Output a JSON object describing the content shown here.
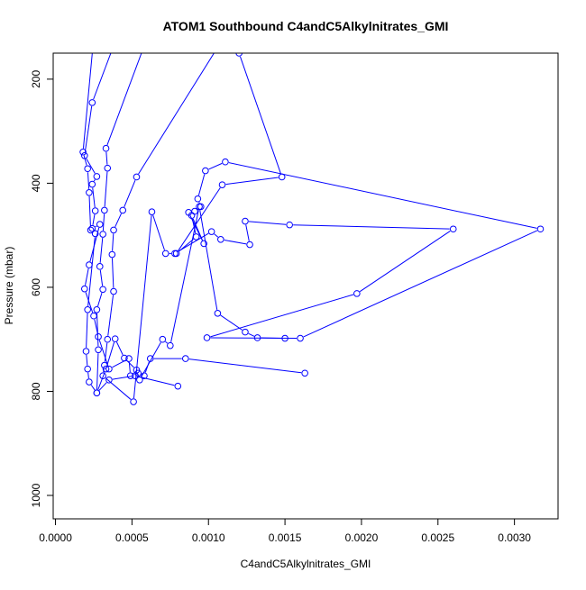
{
  "chart_data": {
    "type": "line",
    "title": "ATOM1 Southbound C4andC5Alkylnitrates_GMI",
    "xlabel": "C4andC5Alkylnitrates_GMI",
    "ylabel": "Pressure (mbar)",
    "xlim": [
      -1.5e-05,
      0.003285
    ],
    "ylim": [
      1045,
      150
    ],
    "y_reversed": true,
    "grid": false,
    "line_color": "#0000ff",
    "marker": "open-circle",
    "x_ticks": [
      0,
      0.0005,
      0.001,
      0.0015,
      0.002,
      0.0025,
      0.003
    ],
    "x_tick_labels": [
      "0.0000",
      "0.0005",
      "0.0010",
      "0.0015",
      "0.0020",
      "0.0025",
      "0.0030"
    ],
    "y_ticks": [
      200,
      400,
      600,
      800,
      1000
    ],
    "y_tick_labels": [
      "200",
      "400",
      "600",
      "800",
      "1000"
    ],
    "series": [
      {
        "values": [
          [
            0.00025,
            120
          ],
          [
            0.00018,
            340
          ],
          [
            0.00021,
            372
          ],
          [
            0.00022,
            418
          ],
          [
            0.00023,
            490
          ],
          [
            0.00026,
            497
          ],
          [
            0.00021,
            643
          ],
          [
            0.0002,
            723
          ],
          [
            0.00021,
            757
          ],
          [
            0.00022,
            782
          ],
          [
            0.00027,
            803
          ],
          [
            0.00035,
            778
          ],
          [
            0.00052,
            770
          ],
          [
            0.0008,
            790
          ]
        ]
      },
      {
        "values": [
          [
            0.0004,
            120
          ],
          [
            0.00024,
            245
          ],
          [
            0.00019,
            347
          ],
          [
            0.00027,
            387
          ],
          [
            0.00024,
            402
          ],
          [
            0.00026,
            453
          ],
          [
            0.00024,
            487
          ],
          [
            0.00029,
            479
          ],
          [
            0.00022,
            557
          ],
          [
            0.00019,
            603
          ],
          [
            0.00025,
            655
          ],
          [
            0.00028,
            695
          ],
          [
            0.00035,
            757
          ],
          [
            0.00048,
            737
          ],
          [
            0.00049,
            770
          ],
          [
            0.00054,
            765
          ],
          [
            0.00058,
            770
          ],
          [
            0.00062,
            737
          ],
          [
            0.00085,
            737
          ],
          [
            0.00163,
            765
          ]
        ]
      },
      {
        "values": [
          [
            0.0006,
            120
          ],
          [
            0.00033,
            333
          ],
          [
            0.00034,
            371
          ],
          [
            0.00032,
            452
          ],
          [
            0.00031,
            498
          ],
          [
            0.00029,
            560
          ],
          [
            0.00031,
            604
          ],
          [
            0.00027,
            643
          ],
          [
            0.00028,
            720
          ],
          [
            0.00027,
            803
          ],
          [
            0.00033,
            757
          ],
          [
            0.00039,
            699
          ],
          [
            0.00045,
            736
          ],
          [
            0.00053,
            759
          ],
          [
            0.00055,
            778
          ],
          [
            0.0007,
            700
          ],
          [
            0.00075,
            712
          ],
          [
            0.00094,
            445
          ],
          [
            0.00106,
            650
          ],
          [
            0.00124,
            686
          ],
          [
            0.00132,
            697
          ],
          [
            0.0015,
            698
          ]
        ]
      },
      {
        "values": [
          [
            0.0011,
            120
          ],
          [
            0.00053,
            388
          ],
          [
            0.00044,
            452
          ],
          [
            0.00038,
            490
          ],
          [
            0.00037,
            537
          ],
          [
            0.00038,
            608
          ],
          [
            0.00034,
            700
          ],
          [
            0.00032,
            750
          ],
          [
            0.00031,
            770
          ],
          [
            0.00051,
            820
          ],
          [
            0.00063,
            455
          ],
          [
            0.00072,
            535
          ],
          [
            0.00078,
            535
          ],
          [
            0.00102,
            493
          ],
          [
            0.00108,
            508
          ],
          [
            0.00127,
            518
          ],
          [
            0.00124,
            473
          ],
          [
            0.00153,
            480
          ],
          [
            0.0026,
            488
          ],
          [
            0.00197,
            612
          ],
          [
            0.00099,
            697
          ],
          [
            0.0016,
            698
          ],
          [
            0.00317,
            488
          ],
          [
            0.00111,
            359
          ],
          [
            0.00098,
            376
          ],
          [
            0.00093,
            430
          ],
          [
            0.00095,
            445
          ],
          [
            0.00091,
            454
          ],
          [
            0.00087,
            456
          ],
          [
            0.00097,
            516
          ],
          [
            0.00089,
            462
          ],
          [
            0.00092,
            503
          ],
          [
            0.00079,
            535
          ],
          [
            0.00109,
            403
          ],
          [
            0.00148,
            388
          ],
          [
            0.0012,
            150
          ]
        ]
      }
    ]
  }
}
